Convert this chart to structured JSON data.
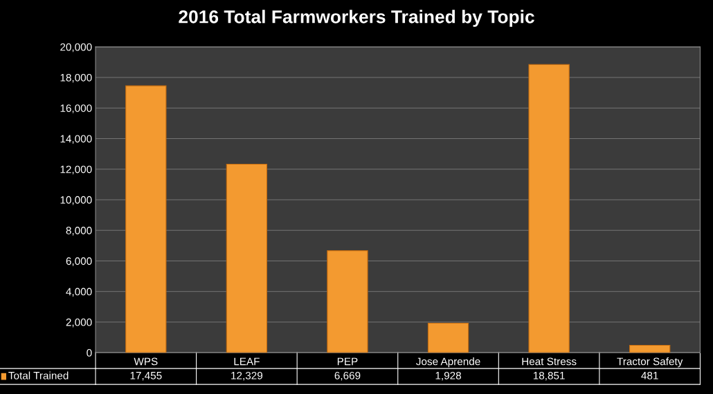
{
  "chart_data": {
    "type": "bar",
    "title": "2016 Total Farmworkers Trained by Topic",
    "categories": [
      "WPS",
      "LEAF",
      "PEP",
      "Jose Aprende",
      "Heat Stress",
      "Tractor Safety"
    ],
    "series": [
      {
        "name": "Total Trained",
        "color": "#f39a30",
        "values": [
          17455,
          12329,
          6669,
          1928,
          18851,
          481
        ],
        "value_labels": [
          "17,455",
          "12,329",
          "6,669",
          "1,928",
          "18,851",
          "481"
        ]
      }
    ],
    "ylim": [
      0,
      20000
    ],
    "yticks": [
      0,
      {
        "value": 2000,
        "label": "2,000"
      },
      {
        "value": 4000,
        "label": "4,000"
      },
      {
        "value": 6000,
        "label": "6,000"
      },
      {
        "value": 8000,
        "label": "8,000"
      },
      {
        "value": 10000,
        "label": "10,000"
      },
      {
        "value": 12000,
        "label": "12,000"
      },
      {
        "value": 14000,
        "label": "14,000"
      },
      {
        "value": 16000,
        "label": "16,000"
      },
      {
        "value": 18000,
        "label": "18,000"
      },
      {
        "value": 20000,
        "label": "20,000"
      }
    ],
    "grid": "y"
  }
}
